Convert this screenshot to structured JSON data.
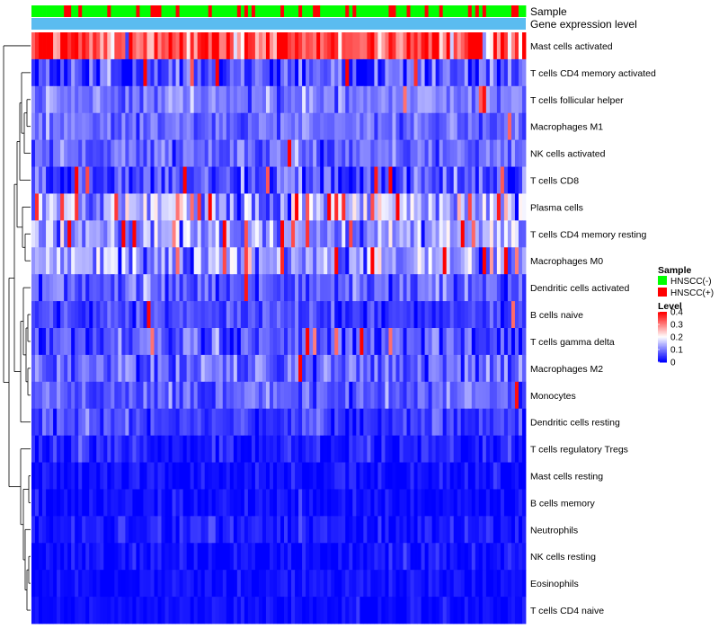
{
  "chart_data": {
    "type": "heatmap",
    "title": "",
    "n_samples": 137,
    "annotation_rows": [
      "Sample",
      "Gene expression level"
    ],
    "rows": [
      {
        "label": "Mast cells activated",
        "mean": 0.3,
        "spread": 0.12,
        "hot": 0.45
      },
      {
        "label": "T cells CD4 memory activated",
        "mean": 0.06,
        "spread": 0.08,
        "hot": 0.05
      },
      {
        "label": "T cells follicular helper",
        "mean": 0.1,
        "spread": 0.05,
        "hot": 0.02
      },
      {
        "label": "Macrophages M1",
        "mean": 0.08,
        "spread": 0.05,
        "hot": 0.02
      },
      {
        "label": "NK cells activated",
        "mean": 0.08,
        "spread": 0.05,
        "hot": 0.01
      },
      {
        "label": "T cells CD8",
        "mean": 0.06,
        "spread": 0.07,
        "hot": 0.04
      },
      {
        "label": "Plasma cells",
        "mean": 0.14,
        "spread": 0.1,
        "hot": 0.12
      },
      {
        "label": "T cells CD4 memory resting",
        "mean": 0.12,
        "spread": 0.08,
        "hot": 0.06
      },
      {
        "label": "Macrophages M0",
        "mean": 0.12,
        "spread": 0.09,
        "hot": 0.07
      },
      {
        "label": "Dendritic cells activated",
        "mean": 0.07,
        "spread": 0.06,
        "hot": 0.01
      },
      {
        "label": "B cells naive",
        "mean": 0.05,
        "spread": 0.05,
        "hot": 0.01
      },
      {
        "label": "T cells gamma delta",
        "mean": 0.07,
        "spread": 0.07,
        "hot": 0.03
      },
      {
        "label": "Macrophages M2",
        "mean": 0.08,
        "spread": 0.06,
        "hot": 0.01
      },
      {
        "label": "Monocytes",
        "mean": 0.07,
        "spread": 0.05,
        "hot": 0.01
      },
      {
        "label": "Dendritic cells resting",
        "mean": 0.05,
        "spread": 0.05,
        "hot": 0.0
      },
      {
        "label": "T cells regulatory  Tregs",
        "mean": 0.02,
        "spread": 0.04,
        "hot": 0.0
      },
      {
        "label": "Mast cells resting",
        "mean": 0.01,
        "spread": 0.03,
        "hot": 0.0
      },
      {
        "label": "B cells memory",
        "mean": 0.01,
        "spread": 0.03,
        "hot": 0.0
      },
      {
        "label": "Neutrophils",
        "mean": 0.02,
        "spread": 0.03,
        "hot": 0.0
      },
      {
        "label": "NK cells resting",
        "mean": 0.01,
        "spread": 0.03,
        "hot": 0.0
      },
      {
        "label": "Eosinophils",
        "mean": 0.01,
        "spread": 0.02,
        "hot": 0.0
      },
      {
        "label": "T cells CD4 naive",
        "mean": 0.01,
        "spread": 0.02,
        "hot": 0.0
      }
    ],
    "color_scale": {
      "min": 0,
      "max": 0.4,
      "low": "#0000ff",
      "mid": "#ffffff",
      "mid_value": 0.2,
      "high": "#ff0000"
    },
    "sample_groups": [
      {
        "name": "HNSCC(-)",
        "color": "#00ff00"
      },
      {
        "name": "HNSCC(+)",
        "color": "#ff0000"
      }
    ],
    "sample_positive_fraction": 0.22,
    "expression_level_color": "#5bbcf0",
    "legend": {
      "sample_title": "Sample",
      "level_title": "Level",
      "level_ticks": [
        "0.4",
        "0.3",
        "0.2",
        "0.1",
        "0"
      ],
      "level_tick_values": [
        0.4,
        0.3,
        0.2,
        0.1,
        0
      ]
    },
    "dendrogram": "left-row-tree"
  }
}
